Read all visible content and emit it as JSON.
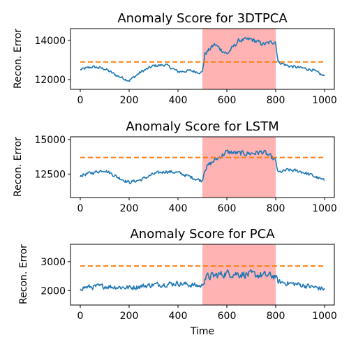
{
  "chart_data": [
    {
      "type": "line",
      "title": "Anomaly Score for 3DTPCA",
      "xlabel": "",
      "ylabel": "Recon. Error",
      "xlim": [
        -40,
        1040
      ],
      "ylim": [
        11500,
        14600
      ],
      "xticks": [
        0,
        200,
        400,
        600,
        800,
        1000
      ],
      "yticks": [
        12000,
        14000
      ],
      "ytick_labels": [
        "12000",
        "14000"
      ],
      "threshold": 12900,
      "anomaly_region": [
        500,
        800
      ],
      "noise": 0.55,
      "series": [
        {
          "values": [
            [
              0,
              12500
            ],
            [
              50,
              12650
            ],
            [
              100,
              12550
            ],
            [
              150,
              12200
            ],
            [
              200,
              11950
            ],
            [
              250,
              12400
            ],
            [
              300,
              12700
            ],
            [
              350,
              12750
            ],
            [
              400,
              12400
            ],
            [
              450,
              12450
            ],
            [
              499,
              12350
            ],
            [
              510,
              13300
            ],
            [
              550,
              13800
            ],
            [
              600,
              13300
            ],
            [
              650,
              14000
            ],
            [
              700,
              14050
            ],
            [
              750,
              13800
            ],
            [
              799,
              13950
            ],
            [
              810,
              12900
            ],
            [
              850,
              12700
            ],
            [
              900,
              12600
            ],
            [
              950,
              12500
            ],
            [
              1000,
              12150
            ]
          ]
        }
      ]
    },
    {
      "type": "line",
      "title": "Anomaly Score for LSTM",
      "xlabel": "",
      "ylabel": "Recon. Error",
      "xlim": [
        -40,
        1040
      ],
      "ylim": [
        10800,
        15200
      ],
      "xticks": [
        0,
        200,
        400,
        600,
        800,
        1000
      ],
      "yticks": [
        12500,
        15000
      ],
      "ytick_labels": [
        "12500",
        "15000"
      ],
      "threshold": 13700,
      "anomaly_region": [
        500,
        800
      ],
      "noise": 0.65,
      "series": [
        {
          "values": [
            [
              0,
              12400
            ],
            [
              50,
              12600
            ],
            [
              100,
              12800
            ],
            [
              150,
              12300
            ],
            [
              200,
              11900
            ],
            [
              250,
              12100
            ],
            [
              300,
              12500
            ],
            [
              350,
              12700
            ],
            [
              400,
              12600
            ],
            [
              450,
              12300
            ],
            [
              499,
              12000
            ],
            [
              510,
              12900
            ],
            [
              550,
              13500
            ],
            [
              600,
              14100
            ],
            [
              650,
              14000
            ],
            [
              700,
              14000
            ],
            [
              750,
              14100
            ],
            [
              799,
              13500
            ],
            [
              810,
              12600
            ],
            [
              850,
              12800
            ],
            [
              900,
              12700
            ],
            [
              950,
              12400
            ],
            [
              1000,
              12000
            ]
          ]
        }
      ]
    },
    {
      "type": "line",
      "title": "Anomaly Score for PCA",
      "xlabel": "Time",
      "ylabel": "Recon. Error",
      "xlim": [
        -40,
        1040
      ],
      "ylim": [
        1500,
        3600
      ],
      "xticks": [
        0,
        200,
        400,
        600,
        800,
        1000
      ],
      "yticks": [
        2000,
        3000
      ],
      "ytick_labels": [
        "2000",
        "3000"
      ],
      "threshold": 2850,
      "anomaly_region": [
        500,
        800
      ],
      "noise": 1.0,
      "series": [
        {
          "values": [
            [
              0,
              2100
            ],
            [
              100,
              2150
            ],
            [
              200,
              2100
            ],
            [
              300,
              2200
            ],
            [
              400,
              2250
            ],
            [
              499,
              2150
            ],
            [
              510,
              2450
            ],
            [
              600,
              2600
            ],
            [
              700,
              2550
            ],
            [
              799,
              2500
            ],
            [
              810,
              2300
            ],
            [
              900,
              2200
            ],
            [
              1000,
              2050
            ]
          ]
        }
      ]
    }
  ],
  "colors": {
    "line": "#1f77b4",
    "threshold": "#ff7f0e",
    "anomaly": "#ffb3b3",
    "axes": "#000000"
  }
}
